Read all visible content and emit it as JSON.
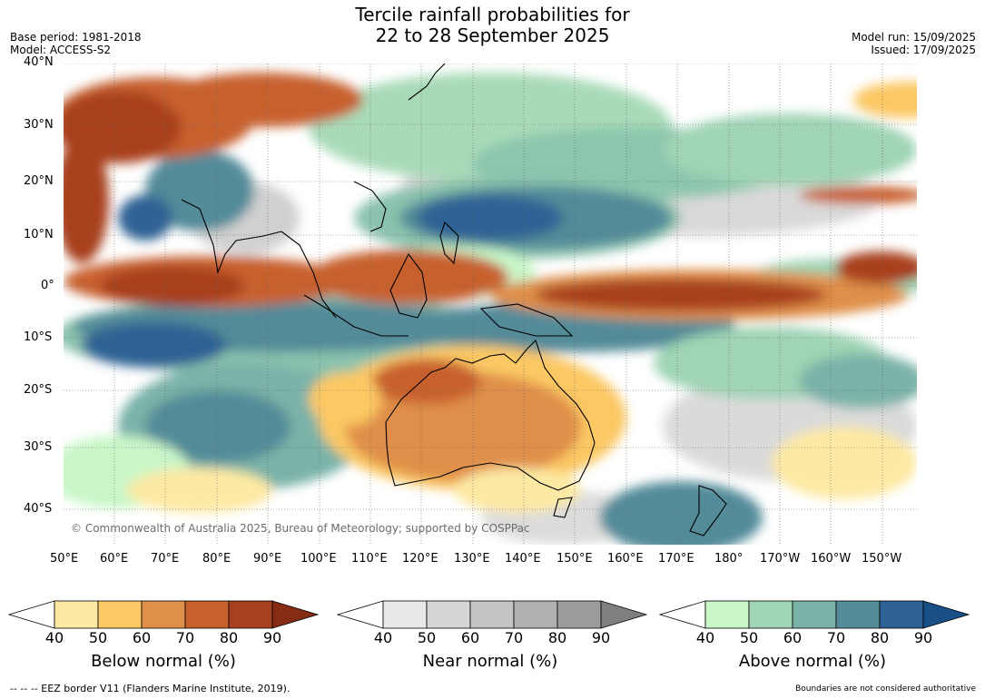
{
  "header": {
    "title_line1": "Tercile rainfall probabilities for",
    "title_line2": "22 to 28 September 2025",
    "base_period": "Base period: 1981-2018",
    "model": "Model: ACCESS-S2",
    "model_run": "Model run: 15/09/2025",
    "issued": "Issued: 17/09/2025"
  },
  "map": {
    "lat_labels": [
      "40°N",
      "30°N",
      "20°N",
      "10°N",
      "0°",
      "10°S",
      "20°S",
      "30°S",
      "40°S"
    ],
    "lon_labels": [
      "50°E",
      "60°E",
      "70°E",
      "80°E",
      "90°E",
      "100°E",
      "110°E",
      "120°E",
      "130°E",
      "140°E",
      "150°E",
      "160°E",
      "170°E",
      "180°",
      "170°W",
      "160°W",
      "150°W"
    ],
    "copyright": "© Commonwealth of Australia 2025, Bureau of Meteorology; supported by COSPPac"
  },
  "legends": [
    {
      "label": "Below normal (%)",
      "ticks": [
        "40",
        "50",
        "60",
        "70",
        "80",
        "90"
      ],
      "colors": [
        "#ffffff",
        "#fde9a3",
        "#fbc863",
        "#df8f48",
        "#c8602d",
        "#a8401f",
        "#862c14"
      ]
    },
    {
      "label": "Near normal (%)",
      "ticks": [
        "40",
        "50",
        "60",
        "70",
        "80",
        "90"
      ],
      "colors": [
        "#ffffff",
        "#e8e8e8",
        "#d6d6d6",
        "#c3c3c3",
        "#b0b0b0",
        "#9c9c9c",
        "#7f7f7f"
      ]
    },
    {
      "label": "Above normal (%)",
      "ticks": [
        "40",
        "50",
        "60",
        "70",
        "80",
        "90"
      ],
      "colors": [
        "#ffffff",
        "#c9f6c8",
        "#9fd4b4",
        "#7ab2a8",
        "#538b99",
        "#2f6294",
        "#184f86"
      ]
    }
  ],
  "footer": {
    "eez": "--  --  -- EEZ border V11 (Flanders Marine Institute, 2019).",
    "disclaimer": "Boundaries are not considered authoritative"
  }
}
